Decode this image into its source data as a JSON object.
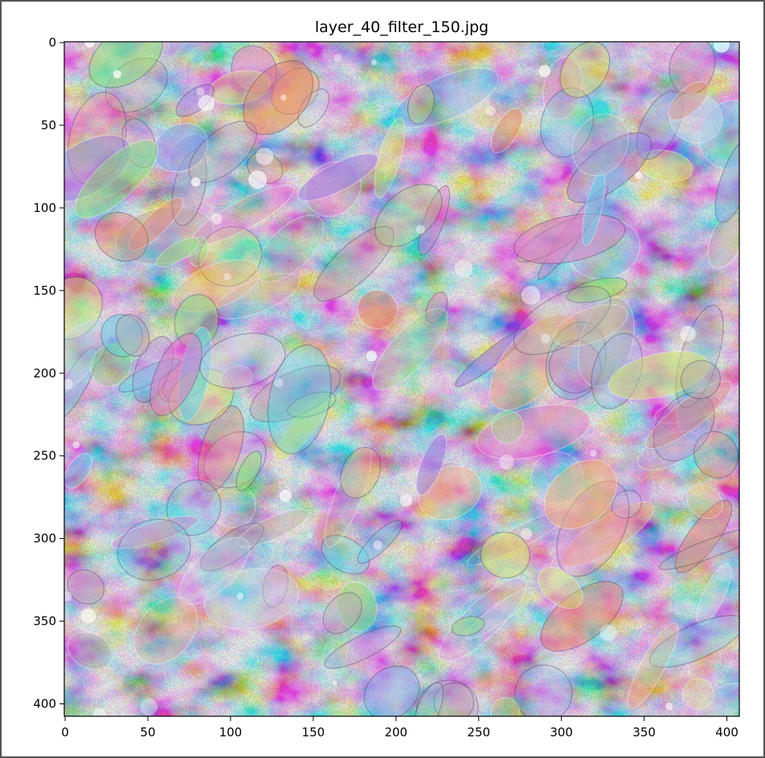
{
  "window": {
    "title": "layer_40_filter_150.jpg"
  },
  "chart_data": {
    "type": "heatmap",
    "title": "layer_40_filter_150.jpg",
    "xlabel": "",
    "ylabel": "",
    "xlim": [
      -0.5,
      407.5
    ],
    "ylim": [
      407.5,
      -0.5
    ],
    "image_extent": [
      408,
      408
    ],
    "xticks": [
      0,
      50,
      100,
      150,
      200,
      250,
      300,
      350,
      400
    ],
    "yticks": [
      0,
      50,
      100,
      150,
      200,
      250,
      300,
      350,
      400
    ],
    "grid": false,
    "legend": "none",
    "colors": [
      "#e8826b",
      "#c7d1e6",
      "#8fe07a",
      "#9a7ae0",
      "#5fd6e8",
      "#f0b277",
      "#e27ac9",
      "#7fa8e8",
      "#d7e86a",
      "#b5aab0"
    ],
    "colors_note": ""
  }
}
